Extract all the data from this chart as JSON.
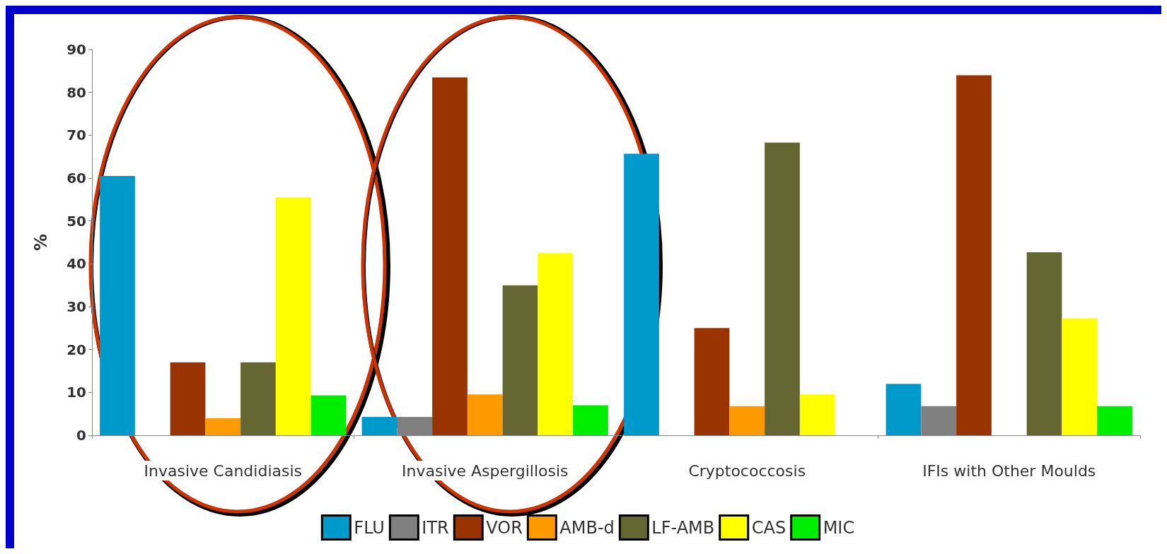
{
  "chart_data": {
    "type": "bar",
    "ylabel": "%",
    "categories": [
      "Invasive Candidiasis",
      "Invasive Aspergillosis",
      "Cryptococcosis",
      "IFIs with Other Moulds"
    ],
    "series": [
      {
        "name": "FLU",
        "color": "#0099cc",
        "values": [
          60.5,
          4.3,
          65.7,
          12
        ]
      },
      {
        "name": "ITR",
        "color": "#808080",
        "values": [
          null,
          4.3,
          null,
          6.8
        ]
      },
      {
        "name": "VOR",
        "color": "#993300",
        "values": [
          17,
          83.5,
          25,
          84
        ]
      },
      {
        "name": "AMB-d",
        "color": "#ff9900",
        "values": [
          4,
          9.5,
          6.8,
          null
        ]
      },
      {
        "name": "LF-AMB",
        "color": "#666633",
        "values": [
          17,
          35,
          68.3,
          42.7
        ]
      },
      {
        "name": "CAS",
        "color": "#ffff00",
        "values": [
          55.5,
          42.5,
          9.5,
          27.3
        ]
      },
      {
        "name": "MIC",
        "color": "#00ee00",
        "values": [
          9.3,
          7,
          null,
          6.8
        ]
      }
    ],
    "ylim": [
      0,
      90
    ],
    "yticks": [
      0,
      10,
      20,
      30,
      40,
      50,
      60,
      70,
      80,
      90
    ],
    "grid": false,
    "legend": "bottom"
  }
}
